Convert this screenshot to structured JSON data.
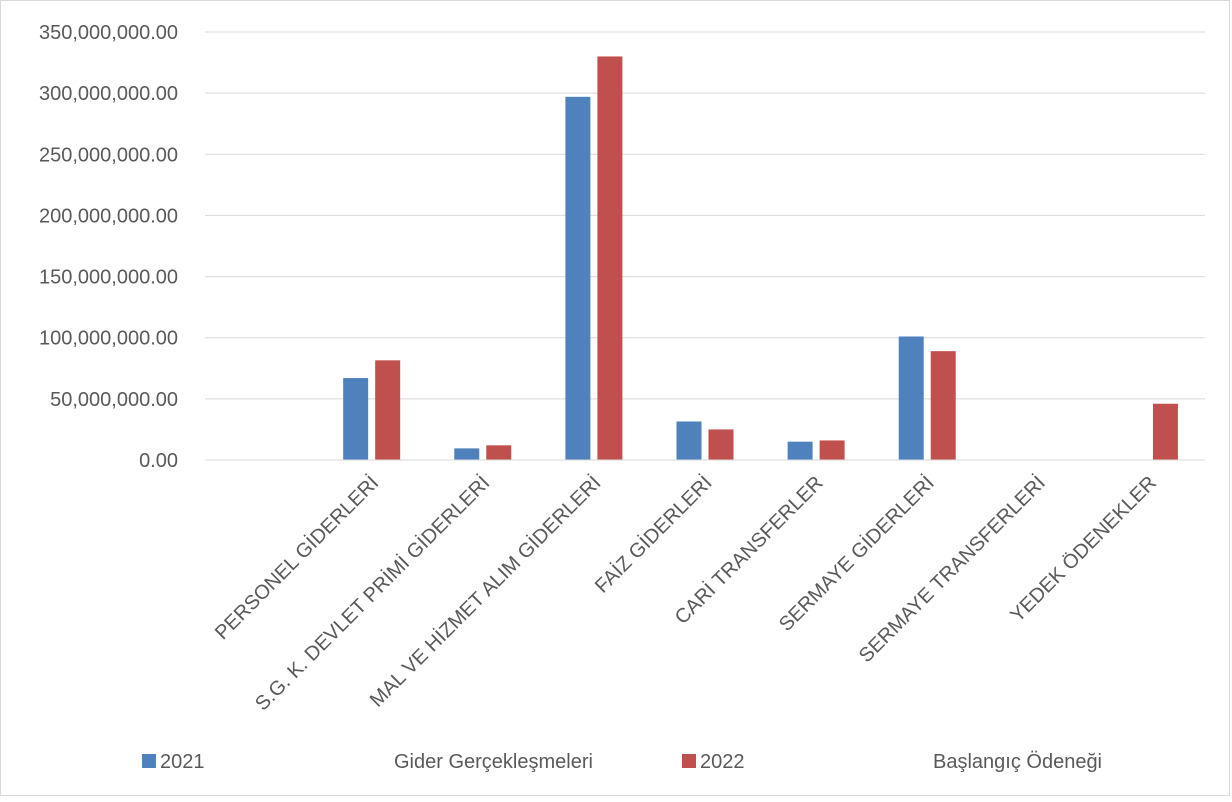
{
  "chart_data": {
    "type": "bar",
    "title": "",
    "xlabel": "",
    "ylabel": "",
    "categories": [
      "",
      "PERSONEL GİDERLERİ",
      "S.G. K. DEVLET PRİMİ GİDERLERİ",
      "MAL VE HİZMET ALIM GİDERLERİ",
      "FAİZ GİDERLERİ",
      "CARİ TRANSFERLER",
      "SERMAYE GİDERLERİ",
      "SERMAYE TRANSFERLERİ",
      "YEDEK ÖDENEKLER"
    ],
    "series": [
      {
        "name": "2021",
        "color": "#4f81bd",
        "values": [
          0,
          67000000,
          9500000,
          297000000,
          31500000,
          15000000,
          101000000,
          0,
          0
        ]
      },
      {
        "name": "2022",
        "color": "#c0504d",
        "values": [
          0,
          81500000,
          12000000,
          330000000,
          25000000,
          16000000,
          89000000,
          0,
          46000000
        ]
      }
    ],
    "ylim": [
      0,
      350000000
    ],
    "yticks": [
      "0.00",
      "50,000,000.00",
      "100,000,000.00",
      "150,000,000.00",
      "200,000,000.00",
      "250,000,000.00",
      "300,000,000.00",
      "350,000,000.00"
    ],
    "legend": {
      "placement": "bottom",
      "entries": [
        {
          "label": "2021",
          "color": "#4f81bd"
        },
        {
          "label": "Gider Gerçekleşmeleri"
        },
        {
          "label": "2022",
          "color": "#c0504d"
        },
        {
          "label": "Başlangıç Ödeneği"
        }
      ]
    },
    "grid": true
  }
}
